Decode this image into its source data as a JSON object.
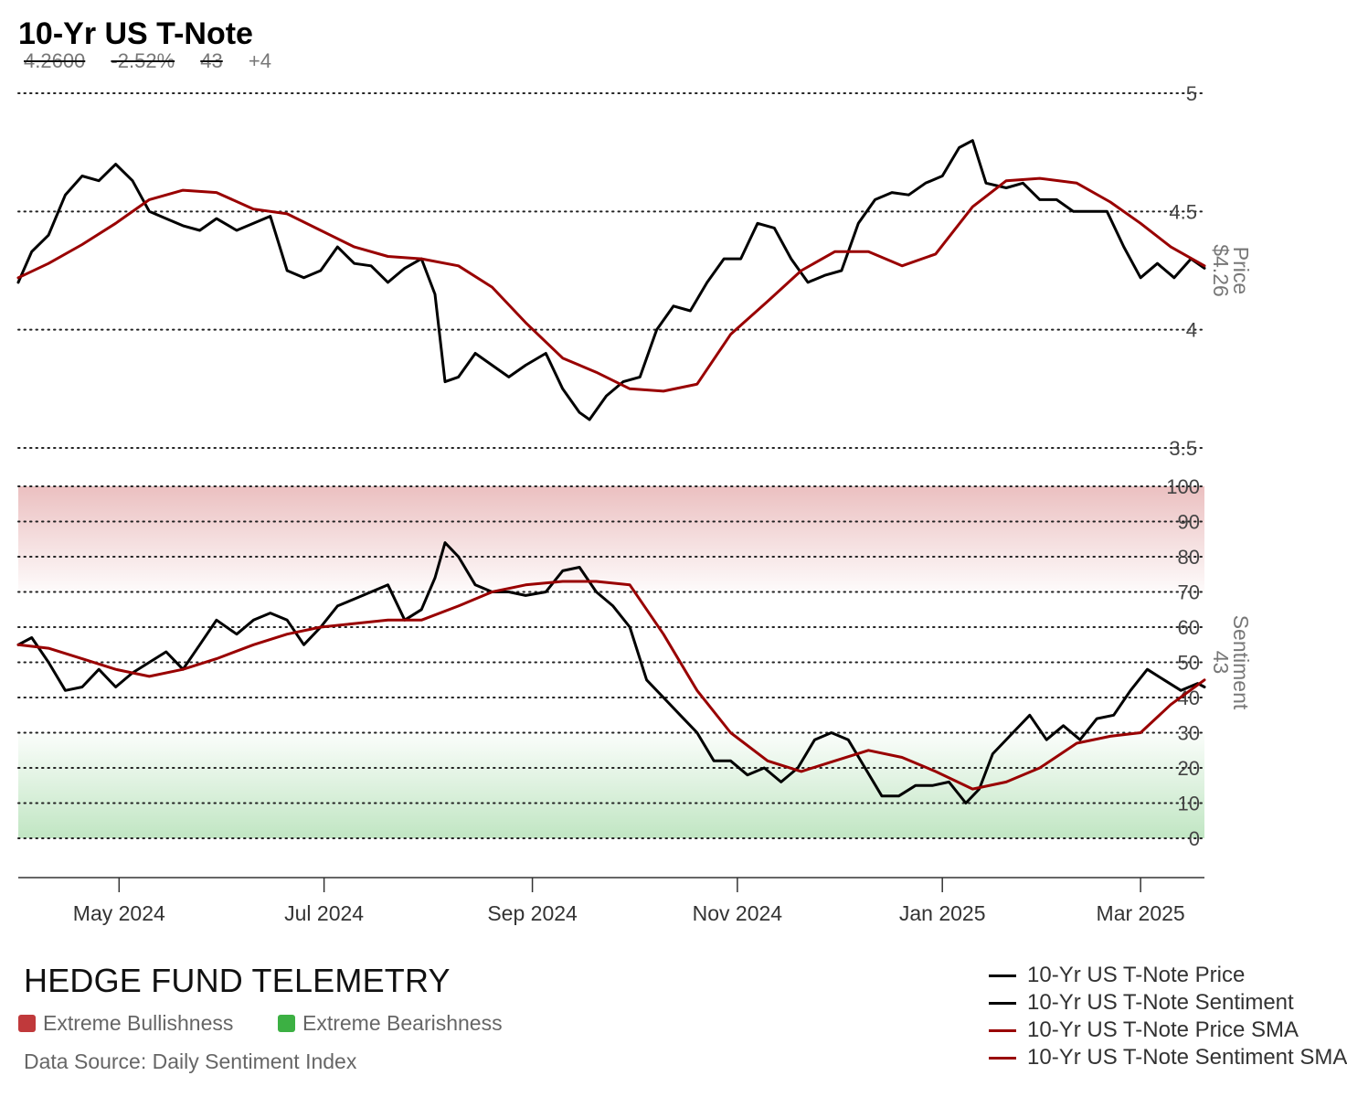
{
  "header": {
    "title": "10-Yr US T-Note",
    "price": "4.2600",
    "change_pct": "-2.52%",
    "sentiment": "43",
    "sentiment_change": "+4"
  },
  "footer": {
    "brand": "HEDGE FUND TELEMETRY",
    "key_bull": "Extreme Bullishness",
    "key_bear": "Extreme Bearishness",
    "source": "Data Source: Daily Sentiment Index"
  },
  "colors": {
    "price_line": "#000000",
    "sma_line": "#990000",
    "bull_zone": "#c0393b",
    "bear_zone": "#3cb043"
  },
  "legend": [
    {
      "label": "10-Yr US T-Note Price",
      "color": "#000000"
    },
    {
      "label": "10-Yr US T-Note Sentiment",
      "color": "#000000"
    },
    {
      "label": "10-Yr US T-Note Price SMA",
      "color": "#990000"
    },
    {
      "label": "10-Yr US T-Note Sentiment SMA",
      "color": "#990000"
    }
  ],
  "chart_data": [
    {
      "type": "line",
      "panel": "price",
      "axis_label": "Price",
      "last_value_label": "$4.26",
      "ylim": [
        3.5,
        5.0
      ],
      "yticks": [
        3.5,
        4,
        4.5,
        5
      ],
      "ytick_labels": [
        "3.5",
        "4",
        "4.5",
        "5"
      ],
      "grid": true,
      "x_start": "2024-04-01",
      "x_end": "2025-03-20",
      "series": [
        {
          "name": "10-Yr US T-Note Price",
          "x": [
            "2024-04-01",
            "2024-04-05",
            "2024-04-10",
            "2024-04-15",
            "2024-04-20",
            "2024-04-25",
            "2024-04-30",
            "2024-05-05",
            "2024-05-10",
            "2024-05-15",
            "2024-05-20",
            "2024-05-25",
            "2024-05-30",
            "2024-06-05",
            "2024-06-10",
            "2024-06-15",
            "2024-06-20",
            "2024-06-25",
            "2024-06-30",
            "2024-07-05",
            "2024-07-10",
            "2024-07-15",
            "2024-07-20",
            "2024-07-25",
            "2024-07-30",
            "2024-08-03",
            "2024-08-06",
            "2024-08-10",
            "2024-08-15",
            "2024-08-20",
            "2024-08-25",
            "2024-08-30",
            "2024-09-05",
            "2024-09-10",
            "2024-09-15",
            "2024-09-18",
            "2024-09-23",
            "2024-09-28",
            "2024-10-03",
            "2024-10-08",
            "2024-10-13",
            "2024-10-18",
            "2024-10-23",
            "2024-10-28",
            "2024-11-02",
            "2024-11-07",
            "2024-11-12",
            "2024-11-17",
            "2024-11-22",
            "2024-11-27",
            "2024-12-02",
            "2024-12-07",
            "2024-12-12",
            "2024-12-17",
            "2024-12-22",
            "2024-12-27",
            "2025-01-01",
            "2025-01-06",
            "2025-01-10",
            "2025-01-14",
            "2025-01-20",
            "2025-01-25",
            "2025-01-30",
            "2025-02-04",
            "2025-02-09",
            "2025-02-14",
            "2025-02-19",
            "2025-02-24",
            "2025-03-01",
            "2025-03-06",
            "2025-03-11",
            "2025-03-16",
            "2025-03-20"
          ],
          "values": [
            4.2,
            4.33,
            4.4,
            4.57,
            4.65,
            4.63,
            4.7,
            4.63,
            4.5,
            4.47,
            4.44,
            4.42,
            4.47,
            4.42,
            4.45,
            4.48,
            4.25,
            4.22,
            4.25,
            4.35,
            4.28,
            4.27,
            4.2,
            4.26,
            4.3,
            4.15,
            3.78,
            3.8,
            3.9,
            3.85,
            3.8,
            3.85,
            3.9,
            3.75,
            3.65,
            3.62,
            3.72,
            3.78,
            3.8,
            4.0,
            4.1,
            4.08,
            4.2,
            4.3,
            4.3,
            4.45,
            4.43,
            4.3,
            4.2,
            4.23,
            4.25,
            4.45,
            4.55,
            4.58,
            4.57,
            4.62,
            4.65,
            4.77,
            4.8,
            4.62,
            4.6,
            4.62,
            4.55,
            4.55,
            4.5,
            4.5,
            4.5,
            4.35,
            4.22,
            4.28,
            4.22,
            4.3,
            4.26
          ]
        },
        {
          "name": "10-Yr US T-Note Price SMA",
          "x": [
            "2024-04-01",
            "2024-04-10",
            "2024-04-20",
            "2024-04-30",
            "2024-05-10",
            "2024-05-20",
            "2024-05-30",
            "2024-06-10",
            "2024-06-20",
            "2024-06-30",
            "2024-07-10",
            "2024-07-20",
            "2024-07-30",
            "2024-08-10",
            "2024-08-20",
            "2024-08-30",
            "2024-09-10",
            "2024-09-20",
            "2024-09-30",
            "2024-10-10",
            "2024-10-20",
            "2024-10-30",
            "2024-11-10",
            "2024-11-20",
            "2024-11-30",
            "2024-12-10",
            "2024-12-20",
            "2024-12-30",
            "2025-01-10",
            "2025-01-20",
            "2025-01-30",
            "2025-02-10",
            "2025-02-20",
            "2025-03-01",
            "2025-03-10",
            "2025-03-20"
          ],
          "values": [
            4.22,
            4.28,
            4.36,
            4.45,
            4.55,
            4.59,
            4.58,
            4.51,
            4.49,
            4.42,
            4.35,
            4.31,
            4.3,
            4.27,
            4.18,
            4.03,
            3.88,
            3.82,
            3.75,
            3.74,
            3.77,
            3.98,
            4.12,
            4.25,
            4.33,
            4.33,
            4.27,
            4.32,
            4.52,
            4.63,
            4.64,
            4.62,
            4.54,
            4.45,
            4.35,
            4.27
          ]
        }
      ]
    },
    {
      "type": "line",
      "panel": "sentiment",
      "axis_label": "Sentiment",
      "last_value_label": "43",
      "ylim": [
        0,
        100
      ],
      "yticks": [
        0,
        10,
        20,
        30,
        40,
        50,
        60,
        70,
        80,
        90,
        100
      ],
      "ytick_labels": [
        "0",
        "10",
        "20",
        "30",
        "40",
        "50",
        "60",
        "70",
        "80",
        "90",
        "100"
      ],
      "grid": true,
      "zones": [
        {
          "name": "Extreme Bullishness",
          "from": 70,
          "to": 100
        },
        {
          "name": "Extreme Bearishness",
          "from": 0,
          "to": 30
        }
      ],
      "x_start": "2024-04-01",
      "x_end": "2025-03-20",
      "xtick_dates": [
        "2024-05-01",
        "2024-07-01",
        "2024-09-01",
        "2024-11-01",
        "2025-01-01",
        "2025-03-01"
      ],
      "xtick_labels": [
        "May 2024",
        "Jul 2024",
        "Sep 2024",
        "Nov 2024",
        "Jan 2025",
        "Mar 2025"
      ],
      "series": [
        {
          "name": "10-Yr US T-Note Sentiment",
          "x": [
            "2024-04-01",
            "2024-04-05",
            "2024-04-10",
            "2024-04-15",
            "2024-04-20",
            "2024-04-25",
            "2024-04-30",
            "2024-05-05",
            "2024-05-10",
            "2024-05-15",
            "2024-05-20",
            "2024-05-25",
            "2024-05-30",
            "2024-06-05",
            "2024-06-10",
            "2024-06-15",
            "2024-06-20",
            "2024-06-25",
            "2024-06-30",
            "2024-07-05",
            "2024-07-10",
            "2024-07-15",
            "2024-07-20",
            "2024-07-25",
            "2024-07-30",
            "2024-08-03",
            "2024-08-06",
            "2024-08-10",
            "2024-08-15",
            "2024-08-20",
            "2024-08-25",
            "2024-08-30",
            "2024-09-05",
            "2024-09-10",
            "2024-09-15",
            "2024-09-20",
            "2024-09-25",
            "2024-09-30",
            "2024-10-05",
            "2024-10-10",
            "2024-10-15",
            "2024-10-20",
            "2024-10-25",
            "2024-10-30",
            "2024-11-04",
            "2024-11-09",
            "2024-11-14",
            "2024-11-19",
            "2024-11-24",
            "2024-11-29",
            "2024-12-04",
            "2024-12-09",
            "2024-12-14",
            "2024-12-19",
            "2024-12-24",
            "2024-12-29",
            "2025-01-03",
            "2025-01-08",
            "2025-01-12",
            "2025-01-16",
            "2025-01-22",
            "2025-01-27",
            "2025-02-01",
            "2025-02-06",
            "2025-02-11",
            "2025-02-16",
            "2025-02-21",
            "2025-02-26",
            "2025-03-03",
            "2025-03-08",
            "2025-03-13",
            "2025-03-18",
            "2025-03-20"
          ],
          "values": [
            55,
            57,
            50,
            42,
            43,
            48,
            43,
            47,
            50,
            53,
            48,
            55,
            62,
            58,
            62,
            64,
            62,
            55,
            60,
            66,
            68,
            70,
            72,
            62,
            65,
            74,
            84,
            80,
            72,
            70,
            70,
            69,
            70,
            76,
            77,
            70,
            66,
            60,
            45,
            40,
            35,
            30,
            22,
            22,
            18,
            20,
            16,
            20,
            28,
            30,
            28,
            20,
            12,
            12,
            15,
            15,
            16,
            10,
            14,
            24,
            30,
            35,
            28,
            32,
            28,
            34,
            35,
            42,
            48,
            45,
            42,
            44,
            43
          ]
        },
        {
          "name": "10-Yr US T-Note Sentiment SMA",
          "x": [
            "2024-04-01",
            "2024-04-10",
            "2024-04-20",
            "2024-04-30",
            "2024-05-10",
            "2024-05-20",
            "2024-05-30",
            "2024-06-10",
            "2024-06-20",
            "2024-06-30",
            "2024-07-10",
            "2024-07-20",
            "2024-07-30",
            "2024-08-10",
            "2024-08-20",
            "2024-08-30",
            "2024-09-10",
            "2024-09-20",
            "2024-09-30",
            "2024-10-10",
            "2024-10-20",
            "2024-10-30",
            "2024-11-10",
            "2024-11-20",
            "2024-11-30",
            "2024-12-10",
            "2024-12-20",
            "2024-12-30",
            "2025-01-10",
            "2025-01-20",
            "2025-01-30",
            "2025-02-10",
            "2025-02-20",
            "2025-03-01",
            "2025-03-10",
            "2025-03-20"
          ],
          "values": [
            55,
            54,
            51,
            48,
            46,
            48,
            51,
            55,
            58,
            60,
            61,
            62,
            62,
            66,
            70,
            72,
            73,
            73,
            72,
            58,
            42,
            30,
            22,
            19,
            22,
            25,
            23,
            19,
            14,
            16,
            20,
            27,
            29,
            30,
            38,
            45
          ]
        }
      ]
    }
  ]
}
